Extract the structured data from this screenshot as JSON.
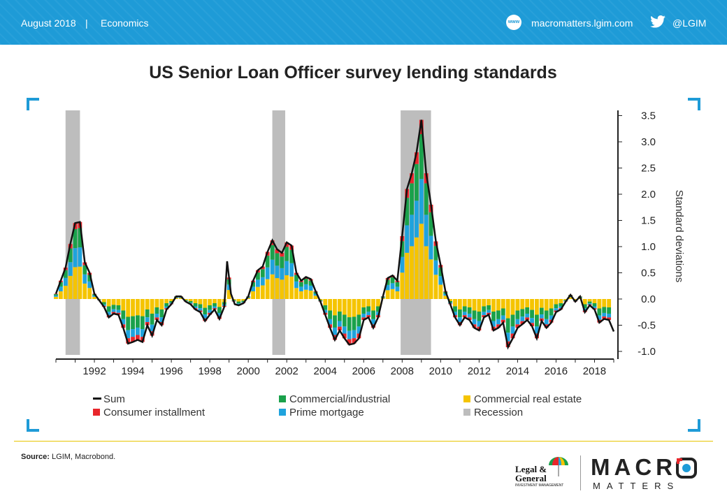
{
  "header": {
    "date": "August 2018",
    "separator": "|",
    "category": "Economics",
    "website_icon": "www",
    "website": "macromatters.lgim.com",
    "twitter_handle": "@LGIM"
  },
  "colors": {
    "header_bg": "#1e9bd7",
    "commercial_industrial": "#1aa14b",
    "commercial_real_estate": "#f5c400",
    "consumer_installment": "#e8262b",
    "prime_mortgage": "#1fa3dd",
    "recession": "#bdbdbd",
    "sum": "#111111"
  },
  "footer": {
    "source_label": "Source:",
    "source_text": " LGIM, Macrobond.",
    "lg_logo_line1": "Legal &",
    "lg_logo_line2": "General",
    "lg_logo_line3": "INVESTMENT MANAGEMENT",
    "brand_macro_a": "MACR",
    "brand_macro_b": "O",
    "brand_matters": "MATTERS"
  },
  "chart_data": {
    "type": "bar",
    "title": "US Senior Loan Officer survey lending standards",
    "ylabel": "Standard deviations",
    "ylim": [
      -1.0,
      3.5
    ],
    "yticks": [
      "3.5",
      "3.0",
      "2.5",
      "2.0",
      "1.5",
      "1.0",
      "0.5",
      "0.0",
      "-0.5",
      "-1.0"
    ],
    "xticks": [
      "1992",
      "1994",
      "1996",
      "1998",
      "2000",
      "2002",
      "2004",
      "2006",
      "2008",
      "2010",
      "2012",
      "2014",
      "2016",
      "2018"
    ],
    "x_range": [
      1990,
      2019
    ],
    "stacked": true,
    "legend": [
      {
        "key": "sum",
        "label": "Sum",
        "kind": "line"
      },
      {
        "key": "commercial_industrial",
        "label": "Commercial/industrial",
        "kind": "box"
      },
      {
        "key": "commercial_real_estate",
        "label": "Commercial real estate",
        "kind": "box"
      },
      {
        "key": "consumer_installment",
        "label": "Consumer installment",
        "kind": "box"
      },
      {
        "key": "prime_mortgage",
        "label": "Prime mortgage",
        "kind": "box"
      },
      {
        "key": "recession",
        "label": "Recession",
        "kind": "box"
      }
    ],
    "recessions": [
      [
        1990.5,
        1991.25
      ],
      [
        2001.25,
        2001.92
      ],
      [
        2007.92,
        2009.5
      ]
    ],
    "sum_series": [
      [
        1990.0,
        0.1
      ],
      [
        1990.5,
        0.6
      ],
      [
        1990.75,
        1.05
      ],
      [
        1991.0,
        1.45
      ],
      [
        1991.25,
        1.47
      ],
      [
        1991.5,
        0.7
      ],
      [
        1991.75,
        0.5
      ],
      [
        1992.0,
        0.1
      ],
      [
        1992.5,
        -0.15
      ],
      [
        1992.75,
        -0.35
      ],
      [
        1993.0,
        -0.28
      ],
      [
        1993.25,
        -0.3
      ],
      [
        1993.5,
        -0.55
      ],
      [
        1993.75,
        -0.85
      ],
      [
        1994.0,
        -0.82
      ],
      [
        1994.25,
        -0.78
      ],
      [
        1994.5,
        -0.82
      ],
      [
        1994.75,
        -0.5
      ],
      [
        1995.0,
        -0.7
      ],
      [
        1995.25,
        -0.4
      ],
      [
        1995.5,
        -0.5
      ],
      [
        1995.75,
        -0.2
      ],
      [
        1996.0,
        -0.1
      ],
      [
        1996.25,
        0.05
      ],
      [
        1996.5,
        0.05
      ],
      [
        1996.75,
        -0.05
      ],
      [
        1997.0,
        -0.1
      ],
      [
        1997.25,
        -0.2
      ],
      [
        1997.5,
        -0.25
      ],
      [
        1997.75,
        -0.42
      ],
      [
        1998.0,
        -0.3
      ],
      [
        1998.25,
        -0.2
      ],
      [
        1998.5,
        -0.38
      ],
      [
        1998.75,
        -0.15
      ],
      [
        1998.9,
        0.72
      ],
      [
        1999.1,
        0.1
      ],
      [
        1999.3,
        -0.1
      ],
      [
        1999.5,
        -0.12
      ],
      [
        1999.75,
        -0.08
      ],
      [
        2000.0,
        0.05
      ],
      [
        2000.25,
        0.35
      ],
      [
        2000.5,
        0.55
      ],
      [
        2000.75,
        0.62
      ],
      [
        2001.0,
        0.9
      ],
      [
        2001.25,
        1.12
      ],
      [
        2001.5,
        0.95
      ],
      [
        2001.75,
        0.88
      ],
      [
        2002.0,
        1.08
      ],
      [
        2002.25,
        1.02
      ],
      [
        2002.5,
        0.5
      ],
      [
        2002.75,
        0.35
      ],
      [
        2003.0,
        0.42
      ],
      [
        2003.25,
        0.38
      ],
      [
        2003.5,
        0.15
      ],
      [
        2003.75,
        -0.05
      ],
      [
        2004.0,
        -0.3
      ],
      [
        2004.25,
        -0.55
      ],
      [
        2004.5,
        -0.78
      ],
      [
        2004.75,
        -0.6
      ],
      [
        2005.0,
        -0.75
      ],
      [
        2005.25,
        -0.87
      ],
      [
        2005.5,
        -0.85
      ],
      [
        2005.75,
        -0.75
      ],
      [
        2006.0,
        -0.4
      ],
      [
        2006.25,
        -0.35
      ],
      [
        2006.5,
        -0.55
      ],
      [
        2006.75,
        -0.35
      ],
      [
        2007.0,
        0.05
      ],
      [
        2007.25,
        0.4
      ],
      [
        2007.5,
        0.45
      ],
      [
        2007.75,
        0.35
      ],
      [
        2008.0,
        1.2
      ],
      [
        2008.25,
        2.1
      ],
      [
        2008.5,
        2.4
      ],
      [
        2008.75,
        2.8
      ],
      [
        2009.0,
        3.42
      ],
      [
        2009.25,
        2.4
      ],
      [
        2009.5,
        1.8
      ],
      [
        2009.75,
        1.1
      ],
      [
        2010.0,
        0.65
      ],
      [
        2010.25,
        0.15
      ],
      [
        2010.5,
        -0.1
      ],
      [
        2010.75,
        -0.35
      ],
      [
        2011.0,
        -0.5
      ],
      [
        2011.25,
        -0.35
      ],
      [
        2011.5,
        -0.4
      ],
      [
        2011.75,
        -0.55
      ],
      [
        2012.0,
        -0.6
      ],
      [
        2012.25,
        -0.35
      ],
      [
        2012.5,
        -0.3
      ],
      [
        2012.75,
        -0.6
      ],
      [
        2013.0,
        -0.55
      ],
      [
        2013.25,
        -0.45
      ],
      [
        2013.5,
        -0.92
      ],
      [
        2013.75,
        -0.75
      ],
      [
        2014.0,
        -0.55
      ],
      [
        2014.25,
        -0.48
      ],
      [
        2014.5,
        -0.4
      ],
      [
        2014.75,
        -0.52
      ],
      [
        2015.0,
        -0.75
      ],
      [
        2015.25,
        -0.42
      ],
      [
        2015.5,
        -0.55
      ],
      [
        2015.75,
        -0.45
      ],
      [
        2016.0,
        -0.25
      ],
      [
        2016.25,
        -0.2
      ],
      [
        2016.5,
        -0.05
      ],
      [
        2016.75,
        0.08
      ],
      [
        2017.0,
        -0.05
      ],
      [
        2017.25,
        0.05
      ],
      [
        2017.5,
        -0.25
      ],
      [
        2017.75,
        -0.12
      ],
      [
        2018.0,
        -0.2
      ],
      [
        2018.25,
        -0.45
      ],
      [
        2018.5,
        -0.38
      ],
      [
        2018.75,
        -0.4
      ],
      [
        2019.0,
        -0.62
      ]
    ]
  }
}
